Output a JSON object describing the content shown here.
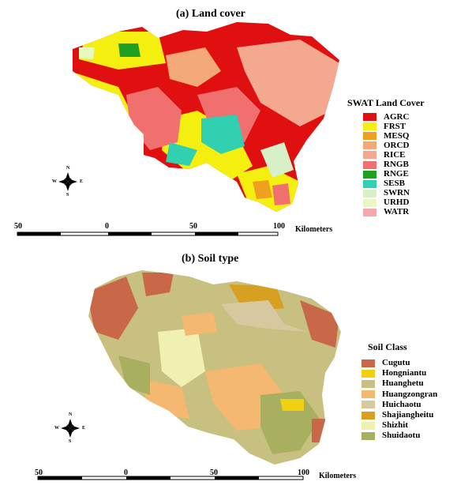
{
  "panel_a": {
    "title": "(a) Land cover",
    "legend_title": "SWAT Land Cover",
    "legend": [
      {
        "label": "AGRC",
        "color": "#e01010"
      },
      {
        "label": "FRST",
        "color": "#f5ef10"
      },
      {
        "label": "MESQ",
        "color": "#f0a020"
      },
      {
        "label": "ORCD",
        "color": "#f2a878"
      },
      {
        "label": "RICE",
        "color": "#f5a890"
      },
      {
        "label": "RNGB",
        "color": "#f07070"
      },
      {
        "label": "RNGE",
        "color": "#20a020"
      },
      {
        "label": "SESB",
        "color": "#30d0b0"
      },
      {
        "label": "SWRN",
        "color": "#d8f0c8"
      },
      {
        "label": "URHD",
        "color": "#e8f8c0"
      },
      {
        "label": "WATR",
        "color": "#f8a8a8"
      }
    ],
    "scale": {
      "ticks": [
        "50",
        "0",
        "50",
        "100"
      ],
      "unit": "Kilometers"
    },
    "compass": {
      "n": "N",
      "s": "S",
      "e": "E",
      "w": "W"
    }
  },
  "panel_b": {
    "title": "(b) Soil type",
    "legend_title": "Soil Class",
    "legend": [
      {
        "label": "Cugutu",
        "color": "#c86848"
      },
      {
        "label": "Hongniantu",
        "color": "#f0d010"
      },
      {
        "label": "Huanghetu",
        "color": "#c8c080"
      },
      {
        "label": "Huangzongran",
        "color": "#f4b870"
      },
      {
        "label": "Huichaotu",
        "color": "#d8c8a0"
      },
      {
        "label": "Shajiangheitu",
        "color": "#d8a020"
      },
      {
        "label": "Shizhit",
        "color": "#f0f0b0"
      },
      {
        "label": "Shuidaotu",
        "color": "#a8b060"
      }
    ],
    "scale": {
      "ticks": [
        "50",
        "0",
        "50",
        "100"
      ],
      "unit": "Kilometers"
    },
    "compass": {
      "n": "N",
      "s": "S",
      "e": "E",
      "w": "W"
    }
  }
}
